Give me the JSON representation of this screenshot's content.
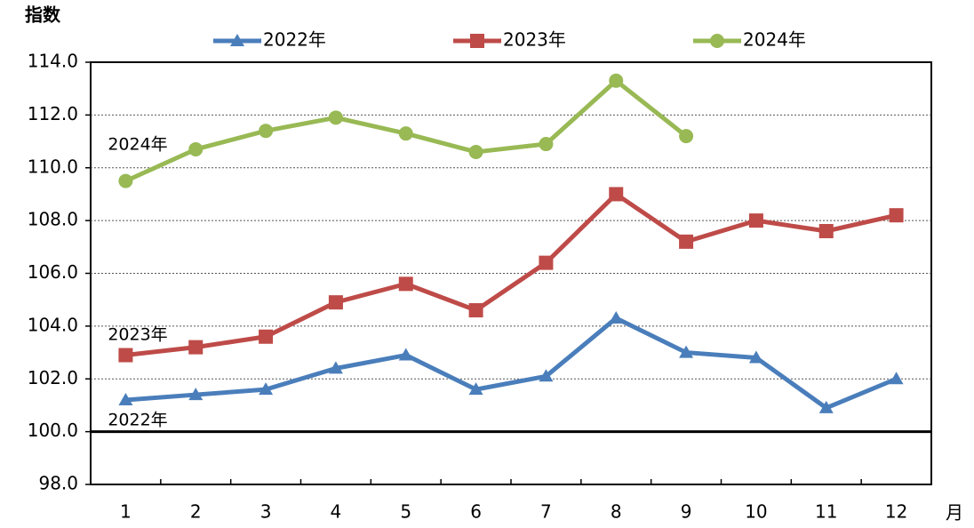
{
  "chart_data": {
    "type": "line",
    "y_label": "指数",
    "x_label": "月",
    "categories": [
      "1",
      "2",
      "3",
      "4",
      "5",
      "6",
      "7",
      "8",
      "9",
      "10",
      "11",
      "12"
    ],
    "series": [
      {
        "name": "2022年",
        "color": "#4a7ebb",
        "marker": "triangle",
        "values": [
          101.2,
          101.4,
          101.6,
          102.4,
          102.9,
          101.6,
          102.1,
          104.3,
          103.0,
          102.8,
          100.9,
          102.0
        ]
      },
      {
        "name": "2023年",
        "color": "#be4b48",
        "marker": "square",
        "values": [
          102.9,
          103.2,
          103.6,
          104.9,
          105.6,
          104.6,
          106.4,
          109.0,
          107.2,
          108.0,
          107.6,
          108.2
        ]
      },
      {
        "name": "2024年",
        "color": "#98b954",
        "marker": "circle",
        "values": [
          109.5,
          110.7,
          111.4,
          111.9,
          111.3,
          110.6,
          110.9,
          113.3,
          111.2,
          null,
          null,
          null
        ]
      }
    ],
    "annotations": [
      "2024年",
      "2023年",
      "2022年"
    ],
    "ylim": [
      98,
      114
    ],
    "yticks": [
      {
        "value": 98,
        "label": "98.0"
      },
      {
        "value": 100,
        "label": "100.0"
      },
      {
        "value": 102,
        "label": "102.0"
      },
      {
        "value": 104,
        "label": "104.0"
      },
      {
        "value": 106,
        "label": "106.0"
      },
      {
        "value": 108,
        "label": "108.0"
      },
      {
        "value": 110,
        "label": "110.0"
      },
      {
        "value": 112,
        "label": "112.0"
      },
      {
        "value": 114,
        "label": "114.0"
      }
    ],
    "reference_line": 100,
    "grid": true,
    "legend": "top"
  }
}
